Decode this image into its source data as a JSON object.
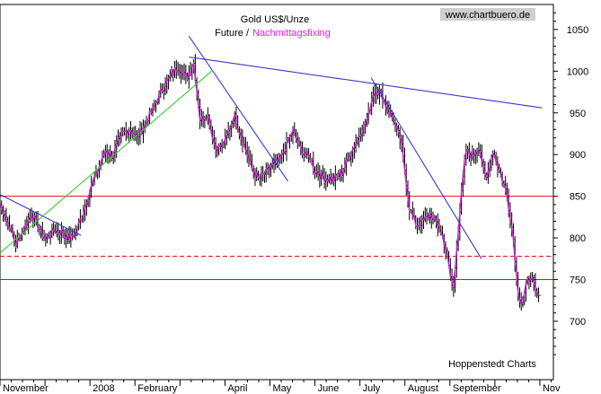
{
  "chart_data": {
    "type": "bar",
    "subtype": "ohlc",
    "title": "Gold US$/Unze",
    "subtitle_prefix": "Future /",
    "subtitle_highlight": "Nachmittagsfixing",
    "website": "www.chartbuero.de",
    "footer": "Hoppenstedt Charts",
    "ylim": [
      630,
      1080
    ],
    "y_ticks": [
      700,
      750,
      800,
      850,
      900,
      950,
      1000,
      1050
    ],
    "grid": false,
    "months": [
      "November",
      "2008",
      "February",
      "April",
      "May",
      "June",
      "July",
      "August",
      "September",
      "Nov"
    ],
    "month_positions": [
      0,
      2,
      3,
      5,
      6,
      7,
      8,
      9,
      10,
      12
    ],
    "x_range": [
      0,
      12.3
    ],
    "price_series": [
      [
        0.0,
        840
      ],
      [
        0.2,
        815
      ],
      [
        0.35,
        792
      ],
      [
        0.5,
        808
      ],
      [
        0.7,
        830
      ],
      [
        0.85,
        812
      ],
      [
        1.0,
        798
      ],
      [
        1.2,
        810
      ],
      [
        1.4,
        806
      ],
      [
        1.55,
        798
      ],
      [
        1.7,
        810
      ],
      [
        1.85,
        830
      ],
      [
        2.0,
        858
      ],
      [
        2.2,
        885
      ],
      [
        2.35,
        905
      ],
      [
        2.5,
        898
      ],
      [
        2.7,
        925
      ],
      [
        2.9,
        930
      ],
      [
        3.05,
        920
      ],
      [
        3.2,
        935
      ],
      [
        3.4,
        955
      ],
      [
        3.6,
        978
      ],
      [
        3.8,
        995
      ],
      [
        3.95,
        1005
      ],
      [
        4.15,
        992
      ],
      [
        4.3,
        1012
      ],
      [
        4.45,
        940
      ],
      [
        4.6,
        950
      ],
      [
        4.8,
        905
      ],
      [
        5.0,
        915
      ],
      [
        5.2,
        948
      ],
      [
        5.4,
        915
      ],
      [
        5.6,
        882
      ],
      [
        5.75,
        870
      ],
      [
        5.9,
        878
      ],
      [
        6.1,
        890
      ],
      [
        6.25,
        895
      ],
      [
        6.35,
        910
      ],
      [
        6.5,
        928
      ],
      [
        6.7,
        905
      ],
      [
        6.9,
        895
      ],
      [
        7.0,
        880
      ],
      [
        7.2,
        872
      ],
      [
        7.4,
        870
      ],
      [
        7.6,
        878
      ],
      [
        7.8,
        902
      ],
      [
        8.0,
        925
      ],
      [
        8.15,
        940
      ],
      [
        8.3,
        975
      ],
      [
        8.45,
        975
      ],
      [
        8.6,
        955
      ],
      [
        8.75,
        940
      ],
      [
        8.9,
        918
      ],
      [
        9.0,
        880
      ],
      [
        9.1,
        835
      ],
      [
        9.25,
        815
      ],
      [
        9.4,
        820
      ],
      [
        9.55,
        828
      ],
      [
        9.7,
        818
      ],
      [
        9.85,
        800
      ],
      [
        9.95,
        775
      ],
      [
        10.0,
        755
      ],
      [
        10.08,
        740
      ],
      [
        10.15,
        790
      ],
      [
        10.25,
        850
      ],
      [
        10.35,
        905
      ],
      [
        10.5,
        898
      ],
      [
        10.65,
        910
      ],
      [
        10.8,
        868
      ],
      [
        10.95,
        905
      ],
      [
        11.1,
        880
      ],
      [
        11.25,
        855
      ],
      [
        11.4,
        805
      ],
      [
        11.5,
        740
      ],
      [
        11.6,
        718
      ],
      [
        11.7,
        745
      ],
      [
        11.8,
        755
      ],
      [
        11.9,
        735
      ],
      [
        12.0,
        728
      ]
    ],
    "horizontal_lines": [
      {
        "value": 850,
        "color": "#e01010",
        "style": "solid"
      },
      {
        "value": 778,
        "color": "#e01010",
        "style": "dashed"
      },
      {
        "value": 750,
        "color": "#e01010",
        "style": "solid"
      }
    ],
    "trend_lines": [
      {
        "color": "#3a3acc",
        "from": [
          0.0,
          852
        ],
        "to": [
          1.8,
          803
        ]
      },
      {
        "color": "#33cc33",
        "from": [
          0.0,
          782
        ],
        "to": [
          4.7,
          1000
        ]
      },
      {
        "color": "#3a3acc",
        "from": [
          4.2,
          1042
        ],
        "to": [
          6.4,
          868
        ]
      },
      {
        "color": "#3a3acc",
        "from": [
          4.2,
          1017
        ],
        "to": [
          12.05,
          956
        ]
      },
      {
        "color": "#3a3acc",
        "from": [
          8.25,
          992
        ],
        "to": [
          10.7,
          775
        ]
      }
    ],
    "colors": {
      "bars": "#000000",
      "close_line": "#dd22dd",
      "title": "#000000",
      "highlight": "#dd22dd",
      "website_bg": "#cfcfcf"
    }
  }
}
